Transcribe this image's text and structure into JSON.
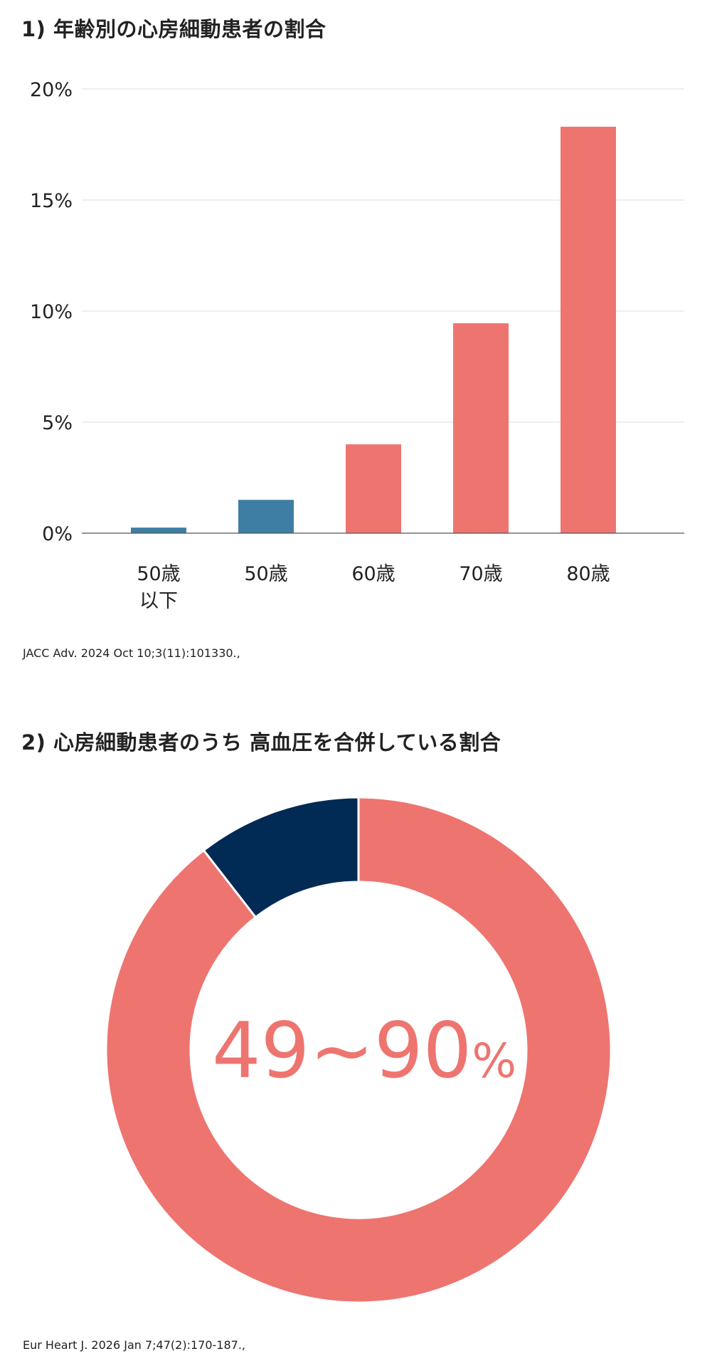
{
  "section1": {
    "title": "1) 年齢別の心房細動患者の割合",
    "source": "JACC Adv. 2024 Oct 10;3(11):101330.,"
  },
  "section2": {
    "title": "2) 心房細動患者のうち 高血圧を合併している割合",
    "source": "Eur Heart J. 2026 Jan 7;47(2):170-187.,"
  },
  "chart_data": [
    {
      "type": "bar",
      "title": "1) 年齢別の心房細動患者の割合",
      "xlabel": "",
      "ylabel": "",
      "categories": [
        [
          "50歳",
          "以下"
        ],
        [
          "50歳"
        ],
        [
          "60歳"
        ],
        [
          "70歳"
        ],
        [
          "80歳"
        ]
      ],
      "values": [
        0.25,
        1.5,
        4.0,
        9.45,
        18.3
      ],
      "bar_colors": [
        "#3f7ea4",
        "#3f7ea4",
        "#ee7470",
        "#ee7470",
        "#ee7470"
      ],
      "ylim": [
        0,
        20
      ],
      "yticks": [
        0,
        5,
        10,
        15,
        20
      ],
      "ytick_labels": [
        "0%",
        "5%",
        "10%",
        "15%",
        "20%"
      ],
      "grid": true,
      "legend": "none"
    },
    {
      "type": "pie",
      "title": "2) 心房細動患者のうち 高血圧を合併している割合",
      "donut": true,
      "slices": [
        {
          "value": 89.5,
          "color": "#ee7470"
        },
        {
          "value": 10.5,
          "color": "#012a55"
        }
      ],
      "center_label": "49~90",
      "center_unit": "%",
      "center_color": "#ee7470",
      "legend": "none"
    }
  ]
}
